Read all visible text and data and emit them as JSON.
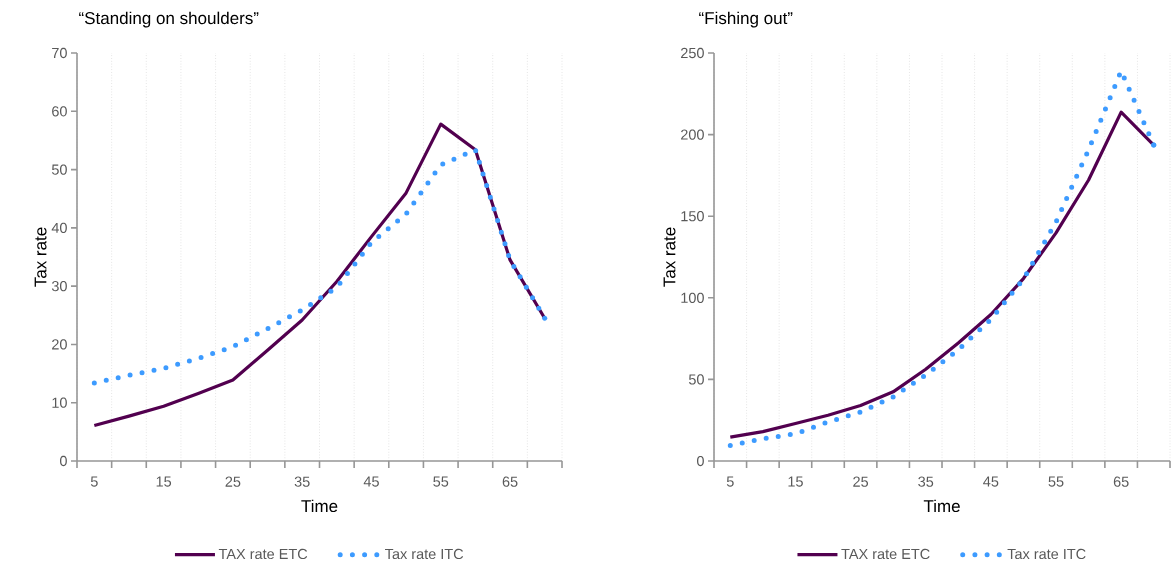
{
  "chart_data": [
    {
      "type": "line",
      "title": "“Standing on shoulders”",
      "xlabel": "Time",
      "ylabel": "Tax rate",
      "x": [
        5,
        10,
        15,
        20,
        25,
        30,
        35,
        40,
        45,
        50,
        55,
        60,
        65,
        70
      ],
      "series": [
        {
          "name": "TAX rate ETC",
          "color": "#52004f",
          "line_style": "solid",
          "values": [
            6.1,
            7.7,
            9.4,
            11.6,
            13.9,
            19.0,
            24.2,
            30.8,
            38.5,
            46.0,
            57.8,
            53.4,
            34.5,
            24.5
          ]
        },
        {
          "name": "Tax rate ITC",
          "color": "#3d9bff",
          "line_style": "dotted",
          "values": [
            13.4,
            14.7,
            15.9,
            17.6,
            19.6,
            22.7,
            25.9,
            29.8,
            37.5,
            42.4,
            50.8,
            53.4,
            34.5,
            24.5
          ]
        }
      ],
      "xlim": [
        2.5,
        72.5
      ],
      "ylim": [
        0,
        70
      ],
      "xticks": [
        {
          "value": 2.5,
          "label": null
        },
        5,
        {
          "value": 7.5,
          "label": null
        },
        {
          "value": 12.5,
          "label": null
        },
        15,
        {
          "value": 17.5,
          "label": null
        },
        {
          "value": 22.5,
          "label": null
        },
        25,
        {
          "value": 27.5,
          "label": null
        },
        {
          "value": 32.5,
          "label": null
        },
        35,
        {
          "value": 37.5,
          "label": null
        },
        {
          "value": 42.5,
          "label": null
        },
        45,
        {
          "value": 47.5,
          "label": null
        },
        {
          "value": 52.5,
          "label": null
        },
        55,
        {
          "value": 57.5,
          "label": null
        },
        {
          "value": 62.5,
          "label": null
        },
        65,
        {
          "value": 67.5,
          "label": null
        },
        {
          "value": 72.5,
          "label": null
        }
      ],
      "yticks": [
        0,
        10,
        20,
        30,
        40,
        50,
        60,
        70
      ],
      "grid": "x",
      "legend": "bottom",
      "marker": "none"
    },
    {
      "type": "line",
      "title": "“Fishing out”",
      "xlabel": "Time",
      "ylabel": "Tax rate",
      "x": [
        5,
        10,
        15,
        20,
        25,
        30,
        35,
        40,
        45,
        50,
        55,
        60,
        65,
        70
      ],
      "series": [
        {
          "name": "TAX rate ETC",
          "color": "#52004f",
          "line_style": "solid",
          "values": [
            14.6,
            18,
            23,
            28,
            34,
            42.4,
            56.2,
            72.3,
            89.8,
            111.8,
            139.8,
            172.2,
            213.8,
            193.6
          ]
        },
        {
          "name": "Tax rate ITC",
          "color": "#3d9bff",
          "line_style": "dotted",
          "values": [
            9.5,
            13.6,
            16.7,
            23.9,
            30,
            39.3,
            52.7,
            68.2,
            86.7,
            111.4,
            146.4,
            190.7,
            239,
            193.6
          ]
        }
      ],
      "xlim": [
        2.5,
        72.5
      ],
      "ylim": [
        0,
        250
      ],
      "xticks": [
        {
          "value": 2.5,
          "label": null
        },
        5,
        {
          "value": 7.5,
          "label": null
        },
        {
          "value": 12.5,
          "label": null
        },
        15,
        {
          "value": 17.5,
          "label": null
        },
        {
          "value": 22.5,
          "label": null
        },
        25,
        {
          "value": 27.5,
          "label": null
        },
        {
          "value": 32.5,
          "label": null
        },
        35,
        {
          "value": 37.5,
          "label": null
        },
        {
          "value": 42.5,
          "label": null
        },
        45,
        {
          "value": 47.5,
          "label": null
        },
        {
          "value": 52.5,
          "label": null
        },
        55,
        {
          "value": 57.5,
          "label": null
        },
        {
          "value": 62.5,
          "label": null
        },
        65,
        {
          "value": 67.5,
          "label": null
        },
        {
          "value": 72.5,
          "label": null
        }
      ],
      "yticks": [
        0,
        50,
        100,
        150,
        200,
        250
      ],
      "grid": "x",
      "legend": "bottom",
      "marker": "none"
    }
  ]
}
